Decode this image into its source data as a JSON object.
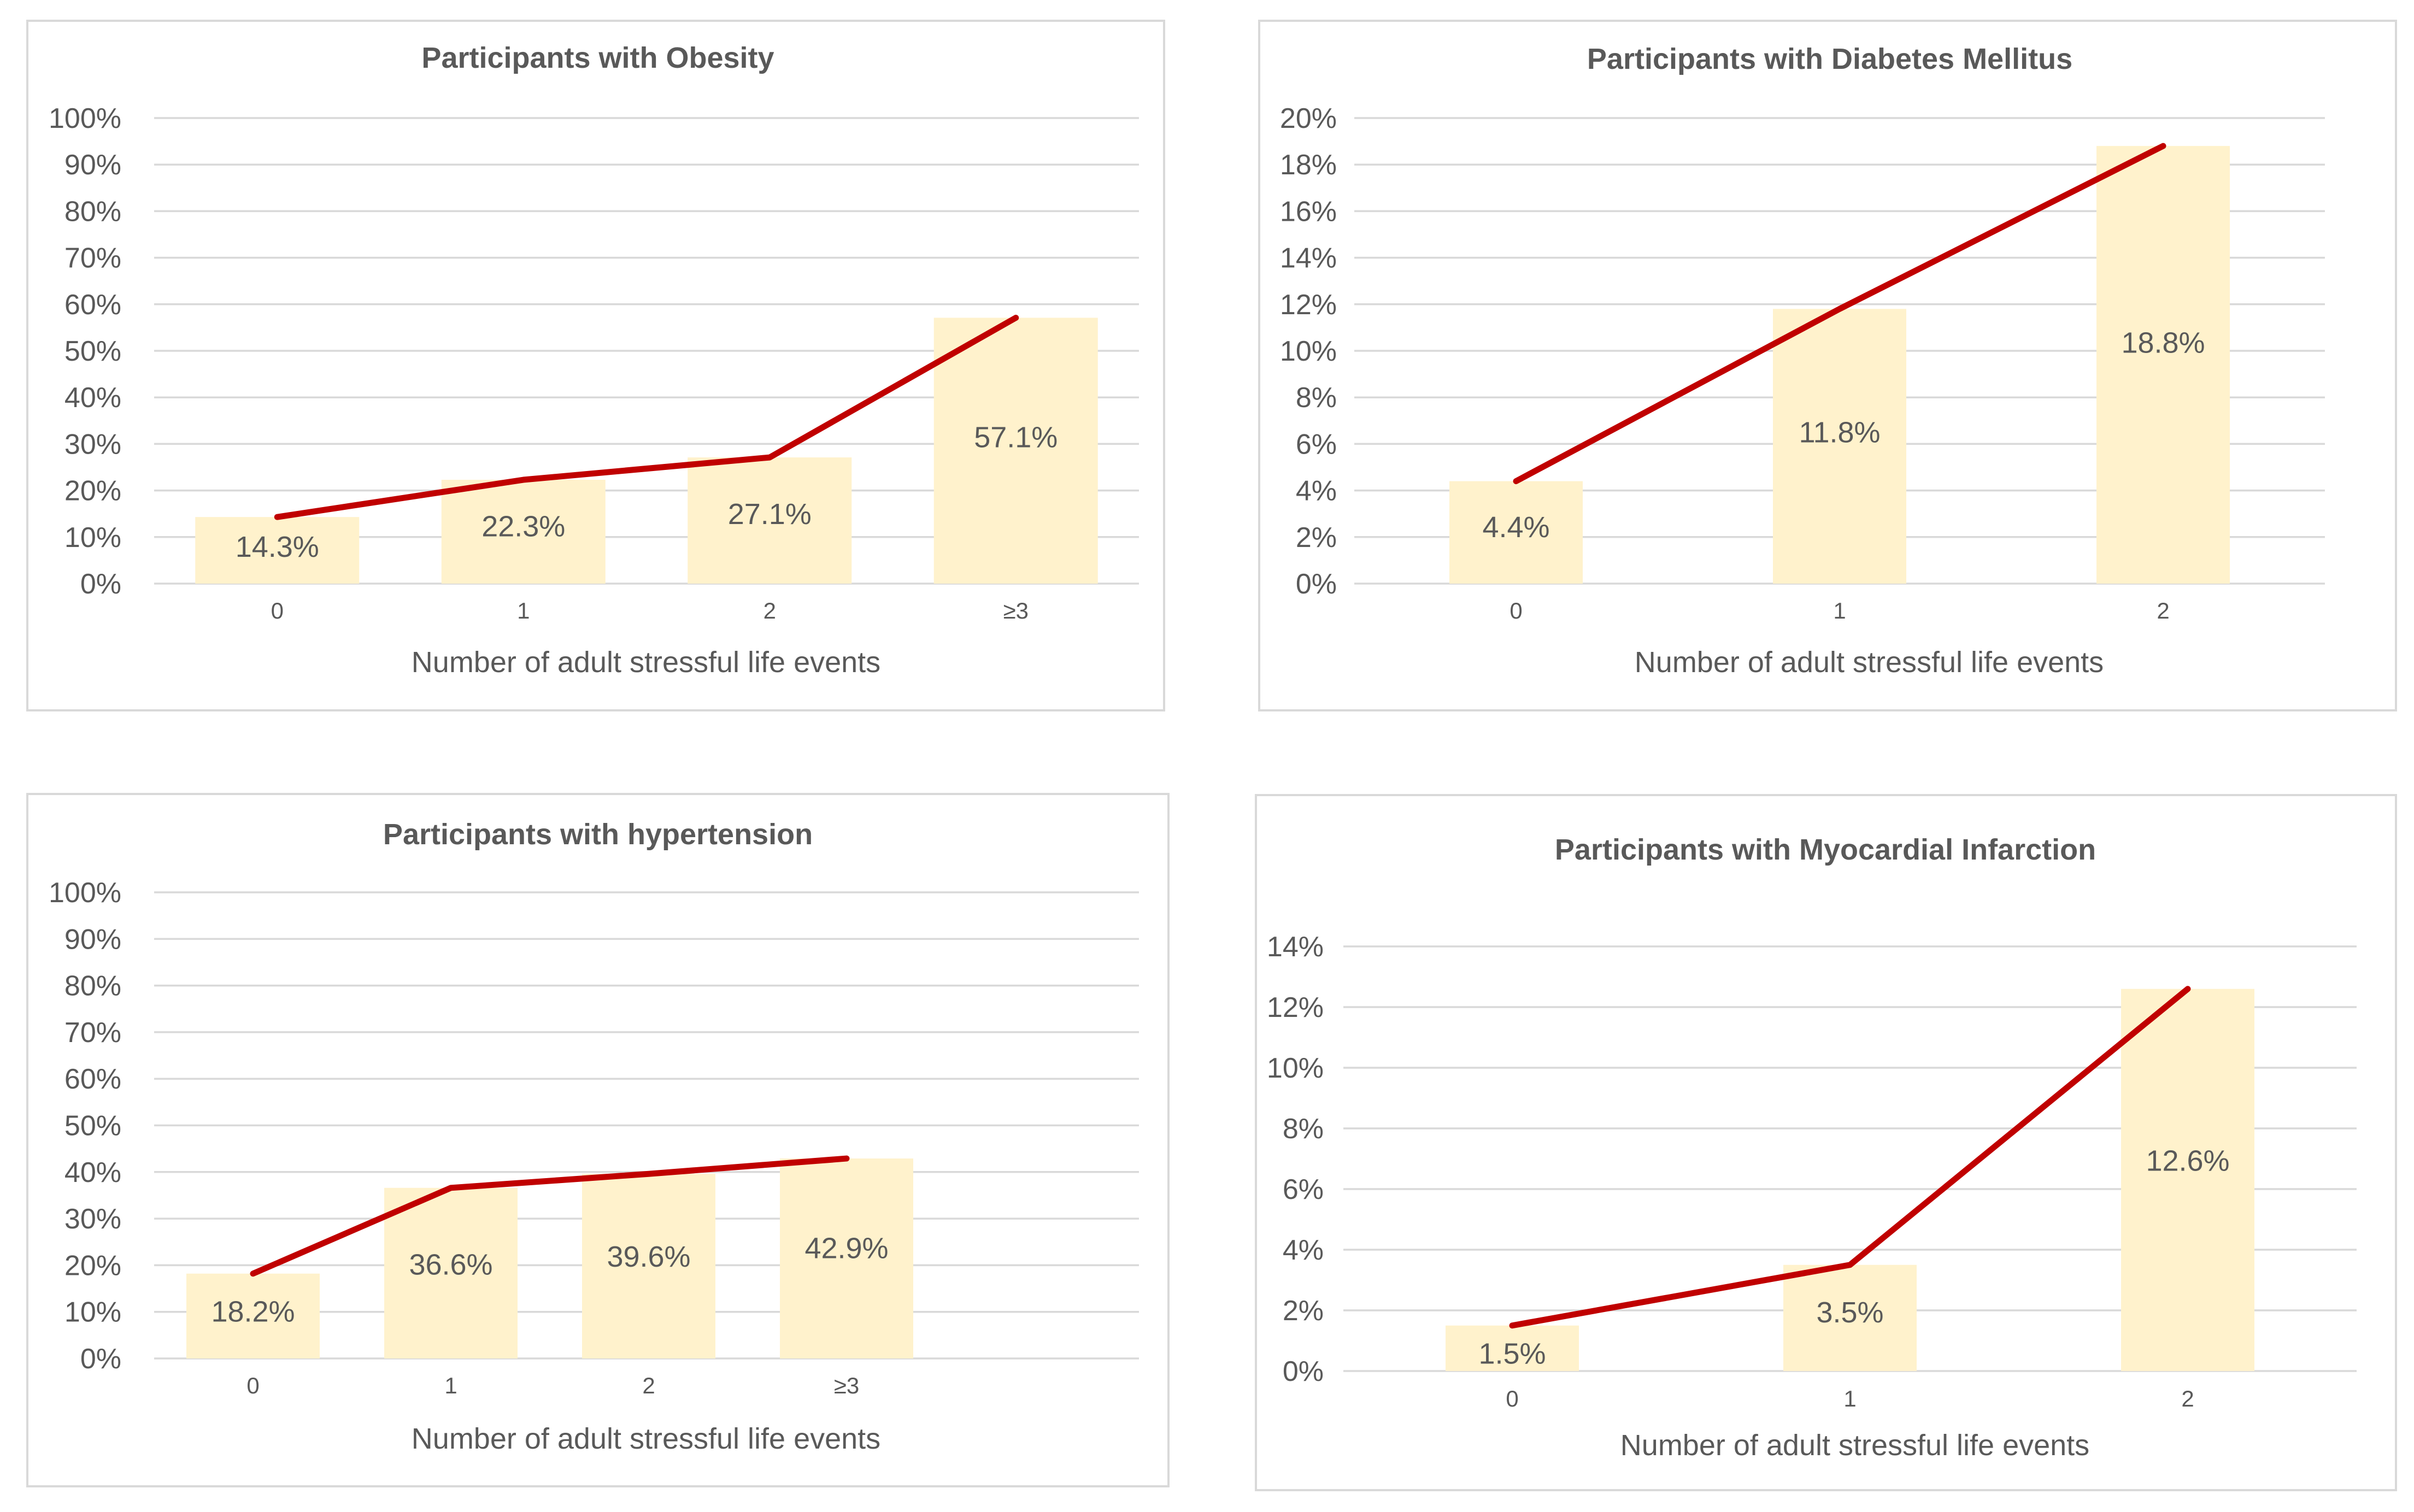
{
  "chart_data": [
    {
      "type": "bar",
      "title": "Participants with Obesity",
      "categories": [
        "0",
        "1",
        "2",
        "≥3"
      ],
      "values": [
        14.3,
        22.3,
        27.1,
        57.1
      ],
      "value_labels": [
        "14.3%",
        "22.3%",
        "27.1%",
        "57.1%"
      ],
      "xlabel": "Number of adult stressful life events",
      "ylabel": "",
      "ylim": [
        0,
        100
      ],
      "ytick_labels": [
        "0%",
        "10%",
        "20%",
        "30%",
        "40%",
        "50%",
        "60%",
        "70%",
        "80%",
        "90%",
        "100%"
      ],
      "bar_color": "#fff2cc",
      "line_color": "#c00000"
    },
    {
      "type": "bar",
      "title": "Participants with Diabetes Mellitus",
      "categories": [
        "0",
        "1",
        "2"
      ],
      "values": [
        4.4,
        11.8,
        18.8
      ],
      "value_labels": [
        "4.4%",
        "11.8%",
        "18.8%"
      ],
      "xlabel": "Number of adult stressful life events",
      "ylabel": "",
      "ylim": [
        0,
        20
      ],
      "ytick_labels": [
        "0%",
        "2%",
        "4%",
        "6%",
        "8%",
        "10%",
        "12%",
        "14%",
        "16%",
        "18%",
        "20%"
      ],
      "bar_color": "#fff2cc",
      "line_color": "#c00000"
    },
    {
      "type": "bar",
      "title": "Participants with hypertension",
      "categories": [
        "0",
        "1",
        "2",
        "≥3"
      ],
      "values": [
        18.2,
        36.6,
        39.6,
        42.9
      ],
      "value_labels": [
        "18.2%",
        "36.6%",
        "39.6%",
        "42.9%"
      ],
      "xlabel": "Number of adult stressful life events",
      "ylabel": "",
      "ylim": [
        0,
        100
      ],
      "ytick_labels": [
        "0%",
        "10%",
        "20%",
        "30%",
        "40%",
        "50%",
        "60%",
        "70%",
        "80%",
        "90%",
        "100%"
      ],
      "bar_color": "#fff2cc",
      "line_color": "#c00000"
    },
    {
      "type": "bar",
      "title": "Participants with Myocardial Infarction",
      "categories": [
        "0",
        "1",
        "2"
      ],
      "values": [
        1.5,
        3.5,
        12.6
      ],
      "value_labels": [
        "1.5%",
        "3.5%",
        "12.6%"
      ],
      "xlabel": "Number of adult stressful life events",
      "ylabel": "",
      "ylim": [
        0,
        14
      ],
      "ytick_labels": [
        "0%",
        "2%",
        "4%",
        "6%",
        "8%",
        "10%",
        "12%",
        "14%"
      ],
      "bar_color": "#fff2cc",
      "line_color": "#c00000"
    }
  ]
}
